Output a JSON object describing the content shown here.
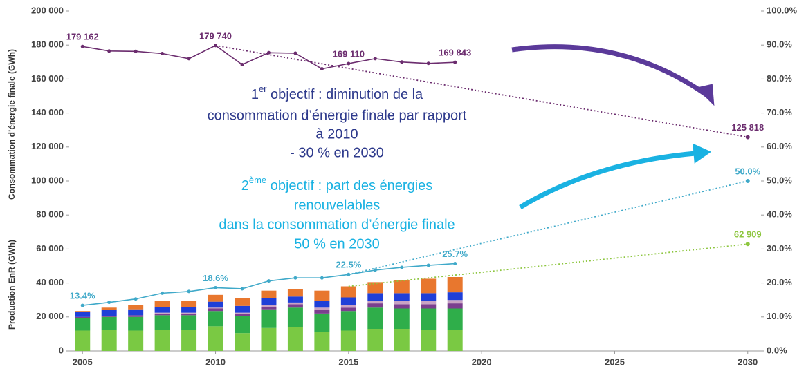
{
  "chart_data": {
    "type": "bar",
    "y_label_top": "Consommation d’énergie finale (GWh)",
    "y_label_bottom": "Production EnR (GWh)",
    "xlim": [
      2004.5,
      2030.5
    ],
    "xticks": [
      2005,
      2010,
      2015,
      2020,
      2025,
      2030
    ],
    "ylim": [
      0,
      200000
    ],
    "yticks": [
      0,
      {
        "value": 20000,
        "label": "20 000"
      },
      {
        "value": 40000,
        "label": "40 000"
      },
      {
        "value": 60000,
        "label": "60 000"
      },
      {
        "value": 80000,
        "label": "80 000"
      },
      {
        "value": 100000,
        "label": "100 000"
      },
      {
        "value": 120000,
        "label": "120 000"
      },
      {
        "value": 140000,
        "label": "140 000"
      },
      {
        "value": 160000,
        "label": "160 000"
      },
      {
        "value": 180000,
        "label": "180 000"
      },
      {
        "value": 200000,
        "label": "200 000"
      }
    ],
    "y2lim": [
      0,
      100
    ],
    "y2ticks": [
      {
        "value": 0,
        "label": "0.0%"
      },
      {
        "value": 10,
        "label": "10.0%"
      },
      {
        "value": 20,
        "label": "20.0%"
      },
      {
        "value": 30,
        "label": "30.0%"
      },
      {
        "value": 40,
        "label": "40.0%"
      },
      {
        "value": 50,
        "label": "50.0%"
      },
      {
        "value": 60,
        "label": "60.0%"
      },
      {
        "value": 70,
        "label": "70.0%"
      },
      {
        "value": 80,
        "label": "80.0%"
      },
      {
        "value": 90,
        "label": "90.0%"
      },
      {
        "value": 100,
        "label": "100.0%"
      }
    ],
    "x": [
      2005,
      2006,
      2007,
      2008,
      2009,
      2010,
      2011,
      2012,
      2013,
      2014,
      2015,
      2016,
      2017,
      2018,
      2019
    ],
    "series": [
      {
        "type": "bar",
        "color": "#7ac943",
        "values": [
          12000,
          12500,
          12000,
          12500,
          12500,
          14500,
          10500,
          13500,
          14000,
          11000,
          12000,
          13000,
          13000,
          12500,
          12500
        ]
      },
      {
        "type": "bar",
        "color": "#2fae4a",
        "values": [
          7500,
          7500,
          8000,
          8500,
          8500,
          9000,
          10000,
          11000,
          11500,
          11000,
          11500,
          12500,
          12000,
          12500,
          12500
        ]
      },
      {
        "type": "bar",
        "color": "#7b3f8e",
        "values": [
          500,
          500,
          1000,
          1000,
          1000,
          1500,
          1500,
          1500,
          2000,
          2000,
          2000,
          2500,
          2500,
          2500,
          3000
        ]
      },
      {
        "type": "bar",
        "color": "#c9a3c4",
        "values": [
          0,
          0,
          0,
          500,
          500,
          500,
          500,
          1000,
          1000,
          1500,
          1500,
          1500,
          2000,
          2000,
          2000
        ]
      },
      {
        "type": "bar",
        "color": "#1f3fd8",
        "values": [
          3000,
          3500,
          3500,
          3500,
          3500,
          3500,
          4000,
          4000,
          3500,
          4000,
          4500,
          4500,
          4500,
          4500,
          4500
        ]
      },
      {
        "type": "bar",
        "color": "#e8772e",
        "values": [
          500,
          1500,
          2500,
          3500,
          3500,
          4000,
          4500,
          4500,
          4500,
          6000,
          6500,
          6500,
          7500,
          8500,
          9000
        ]
      },
      {
        "type": "line",
        "color": "#6b2c6e",
        "values": [
          179162,
          176500,
          176300,
          175000,
          172000,
          179740,
          168500,
          175500,
          175200,
          166000,
          169110,
          172000,
          170000,
          169200,
          169843
        ],
        "value_labels": [
          "179 162",
          null,
          null,
          null,
          null,
          "179 740",
          null,
          null,
          null,
          null,
          "169 110",
          null,
          null,
          null,
          "169 843"
        ]
      },
      {
        "type": "line",
        "axis": "y2",
        "color": "#3fa9c9",
        "values": [
          13.4,
          14.3,
          15.3,
          17.0,
          17.5,
          18.6,
          18.3,
          20.6,
          21.5,
          21.5,
          22.5,
          23.8,
          24.6,
          25.2,
          25.7
        ],
        "value_labels": [
          "13.4%",
          null,
          null,
          null,
          null,
          "18.6%",
          null,
          null,
          null,
          null,
          "22.5%",
          null,
          null,
          null,
          "25.7%"
        ]
      },
      {
        "type": "line",
        "dotted": true,
        "color": "#6b2c6e",
        "x": [
          2010,
          2030
        ],
        "values": [
          179740,
          125818
        ],
        "value_labels": [
          null,
          "125 818"
        ]
      },
      {
        "type": "line",
        "dotted": true,
        "axis": "y2",
        "color": "#3fa9c9",
        "x": [
          2015,
          2030
        ],
        "values": [
          22.5,
          50.0
        ],
        "value_labels": [
          null,
          "50.0%"
        ]
      },
      {
        "type": "line",
        "dotted": true,
        "color": "#8dc63f",
        "x": [
          2015,
          2030
        ],
        "values": [
          38000,
          62909
        ],
        "value_labels": [
          null,
          "62 909"
        ]
      }
    ],
    "annotations": [
      {
        "color": "#2e3a8c",
        "number": "1",
        "sup": "er",
        "lines": [
          " objectif : diminution de la",
          "consommation d’énergie finale par rapport",
          "à 2010",
          "- 30 % en 2030"
        ]
      },
      {
        "color": "#1ab2e2",
        "number": "2",
        "sup": "ème",
        "lines": [
          " objectif : part des énergies",
          "renouvelables",
          "dans la consommation d’énergie finale",
          "50 % en 2030"
        ]
      }
    ]
  }
}
